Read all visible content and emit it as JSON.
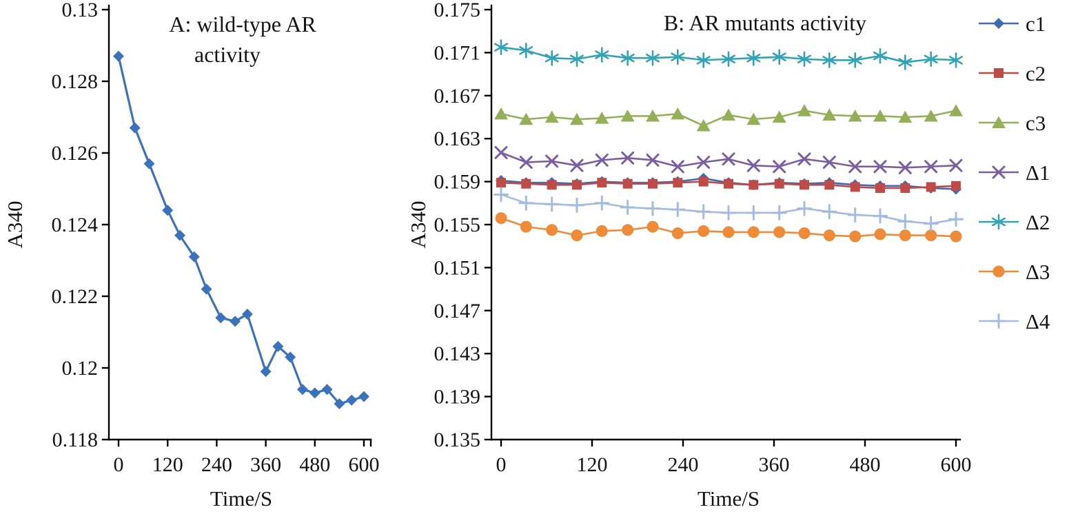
{
  "figure": {
    "background": "#ffffff"
  },
  "chart_data": [
    {
      "id": "A",
      "type": "line",
      "title": "A: wild-type AR activity",
      "title_lines": [
        "A: wild-type AR",
        "activity"
      ],
      "xlabel": "Time/S",
      "ylabel": "A340",
      "xlim": [
        0,
        600
      ],
      "ylim": [
        0.118,
        0.13
      ],
      "grid": false,
      "legend": null,
      "xticks": [
        {
          "v": 0,
          "label": "0"
        },
        {
          "v": 120,
          "label": "120"
        },
        {
          "v": 240,
          "label": "240"
        },
        {
          "v": 360,
          "label": "360"
        },
        {
          "v": 480,
          "label": "480"
        },
        {
          "v": 600,
          "label": "600"
        }
      ],
      "yticks": [
        {
          "v": 0.118,
          "label": "0.118"
        },
        {
          "v": 0.12,
          "label": "0.12"
        },
        {
          "v": 0.122,
          "label": "0.122"
        },
        {
          "v": 0.124,
          "label": "0.124"
        },
        {
          "v": 0.126,
          "label": "0.126"
        },
        {
          "v": 0.128,
          "label": "0.128"
        },
        {
          "v": 0.13,
          "label": "0.13"
        }
      ],
      "x": [
        0,
        40,
        75,
        120,
        150,
        185,
        215,
        250,
        285,
        315,
        360,
        390,
        420,
        450,
        480,
        510,
        540,
        570,
        600
      ],
      "series": [
        {
          "name": "wild-type AR",
          "color": "#3C72BC",
          "marker": "diamond",
          "marker_size": 8,
          "line_width": 3.2,
          "values": [
            0.1287,
            0.1267,
            0.1257,
            0.1244,
            0.1237,
            0.1231,
            0.1222,
            0.1214,
            0.1213,
            0.1215,
            0.1199,
            0.1206,
            0.1203,
            0.1194,
            0.1193,
            0.1194,
            0.119,
            0.1191,
            0.1192
          ]
        }
      ]
    },
    {
      "id": "B",
      "type": "line",
      "title": "B: AR  mutants activity",
      "xlabel": "Time/S",
      "ylabel": "A340",
      "xlim": [
        0,
        600
      ],
      "ylim": [
        0.135,
        0.175
      ],
      "grid": false,
      "legend": "right",
      "xticks": [
        {
          "v": 0,
          "label": "0"
        },
        {
          "v": 120,
          "label": "120"
        },
        {
          "v": 240,
          "label": "240"
        },
        {
          "v": 360,
          "label": "360"
        },
        {
          "v": 480,
          "label": "480"
        },
        {
          "v": 600,
          "label": "600"
        }
      ],
      "yticks": [
        {
          "v": 0.135,
          "label": "0.135"
        },
        {
          "v": 0.139,
          "label": "0.139"
        },
        {
          "v": 0.143,
          "label": "0.143"
        },
        {
          "v": 0.147,
          "label": "0.147"
        },
        {
          "v": 0.151,
          "label": "0.151"
        },
        {
          "v": 0.155,
          "label": "0.155"
        },
        {
          "v": 0.159,
          "label": "0.159"
        },
        {
          "v": 0.163,
          "label": "0.163"
        },
        {
          "v": 0.167,
          "label": "0.167"
        },
        {
          "v": 0.171,
          "label": "0.171"
        },
        {
          "v": 0.175,
          "label": "0.175"
        }
      ],
      "x": [
        0,
        33,
        67,
        100,
        133,
        167,
        200,
        233,
        267,
        300,
        333,
        367,
        400,
        433,
        467,
        500,
        533,
        567,
        600
      ],
      "series": [
        {
          "name": "c1",
          "color": "#3F6BB0",
          "marker": "diamond",
          "marker_size": 8,
          "line_width": 2.6,
          "values": [
            0.1591,
            0.1589,
            0.1589,
            0.1588,
            0.159,
            0.1589,
            0.1589,
            0.159,
            0.1593,
            0.1589,
            0.1587,
            0.1589,
            0.1588,
            0.1589,
            0.1587,
            0.1586,
            0.1586,
            0.1584,
            0.1583
          ]
        },
        {
          "name": "c2",
          "color": "#BE4B48",
          "marker": "square",
          "marker_size": 7,
          "line_width": 2.6,
          "values": [
            0.1589,
            0.1588,
            0.1587,
            0.1587,
            0.1589,
            0.1588,
            0.1588,
            0.1589,
            0.159,
            0.1588,
            0.1587,
            0.1588,
            0.1587,
            0.1587,
            0.1585,
            0.1584,
            0.1584,
            0.1585,
            0.1586
          ]
        },
        {
          "name": "c3",
          "color": "#93AF58",
          "marker": "triangle",
          "marker_size": 9.5,
          "line_width": 2.6,
          "values": [
            0.1653,
            0.1648,
            0.165,
            0.1648,
            0.1649,
            0.1651,
            0.1651,
            0.1653,
            0.1642,
            0.1652,
            0.1648,
            0.165,
            0.1656,
            0.1652,
            0.1651,
            0.1651,
            0.165,
            0.1651,
            0.1656
          ]
        },
        {
          "name": "Δ1",
          "color": "#7A5EA0",
          "marker": "x",
          "marker_size": 8,
          "line_width": 2.6,
          "values": [
            0.1617,
            0.1608,
            0.1609,
            0.1605,
            0.161,
            0.1612,
            0.161,
            0.1604,
            0.1608,
            0.1611,
            0.1605,
            0.1604,
            0.1611,
            0.1608,
            0.1604,
            0.1604,
            0.1603,
            0.1604,
            0.1605
          ]
        },
        {
          "name": "Δ2",
          "color": "#31A3B4",
          "marker": "asterisk",
          "marker_size": 10,
          "line_width": 2.6,
          "values": [
            0.1715,
            0.1712,
            0.1705,
            0.1704,
            0.1708,
            0.1705,
            0.1705,
            0.1706,
            0.1703,
            0.1704,
            0.1705,
            0.1706,
            0.1704,
            0.1703,
            0.1703,
            0.1707,
            0.1701,
            0.1704,
            0.1703
          ]
        },
        {
          "name": "Δ3",
          "color": "#EE8B38",
          "marker": "circle",
          "marker_size": 8.5,
          "line_width": 2.6,
          "values": [
            0.1556,
            0.1548,
            0.1545,
            0.154,
            0.1544,
            0.1545,
            0.1548,
            0.1542,
            0.1544,
            0.1543,
            0.1543,
            0.1543,
            0.1542,
            0.154,
            0.1539,
            0.1541,
            0.154,
            0.154,
            0.1539
          ]
        },
        {
          "name": "Δ4",
          "color": "#A3BCDE",
          "marker": "plus",
          "marker_size": 9.5,
          "line_width": 2.6,
          "values": [
            0.1578,
            0.157,
            0.1569,
            0.1568,
            0.157,
            0.1566,
            0.1565,
            0.1564,
            0.1562,
            0.1561,
            0.1561,
            0.1561,
            0.1565,
            0.1562,
            0.1559,
            0.1558,
            0.1553,
            0.1551,
            0.1555
          ]
        }
      ]
    }
  ]
}
